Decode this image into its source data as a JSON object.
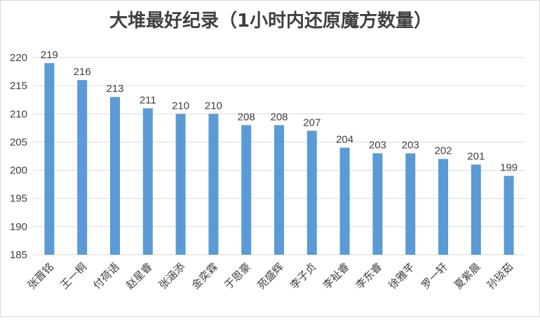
{
  "chart_data": {
    "type": "bar",
    "title": "大堆最好纪录（1小时内还原魔方数量）",
    "categories": [
      "张晋铭",
      "王一桐",
      "付荷语",
      "赵星睿",
      "张涵添",
      "金奕霖",
      "于恩豪",
      "苑盛辉",
      "李子贞",
      "李祉睿",
      "李东睿",
      "徐雅芊",
      "罗一轩",
      "夏紫晨",
      "孙琰茹"
    ],
    "values": [
      219,
      216,
      213,
      211,
      210,
      210,
      208,
      208,
      207,
      204,
      203,
      203,
      202,
      201,
      199
    ],
    "ylim": [
      185,
      220
    ],
    "yticks": [
      185,
      190,
      195,
      200,
      205,
      210,
      215,
      220
    ],
    "data_labels": true,
    "grid": true,
    "legend": "none",
    "bar_color": "#5b9bd5",
    "grid_color": "#d9d9d9",
    "text_color": "#404040"
  }
}
